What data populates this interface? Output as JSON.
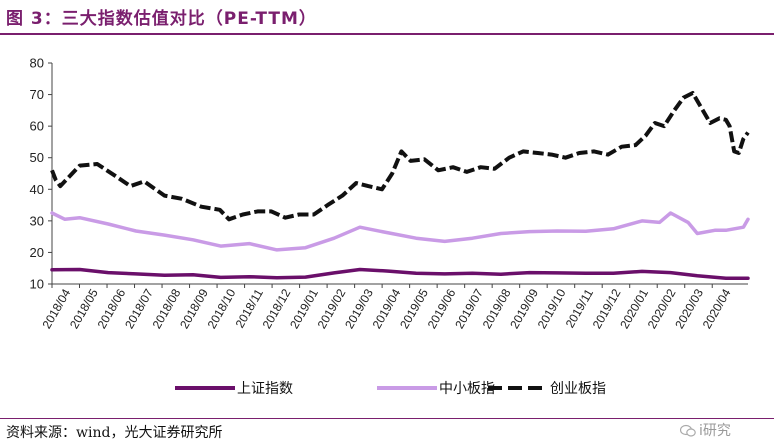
{
  "title": "图 3：三大指数估值对比（PE-TTM）",
  "source": "资料来源：wind，光大证券研究所",
  "watermark": "i研究",
  "colors": {
    "title": "#7a1f6e",
    "上证指数": "#6a0f6a",
    "中小板指": "#c99be6",
    "创业板指": "#111111"
  },
  "chart_data": {
    "type": "line",
    "x_tick_labels": [
      "2018/04",
      "2018/05",
      "2018/06",
      "2018/07",
      "2018/08",
      "2018/09",
      "2018/10",
      "2018/11",
      "2018/12",
      "2019/01",
      "2019/02",
      "2019/03",
      "2019/04",
      "2019/05",
      "2019/06",
      "2019/07",
      "2019/08",
      "2019/09",
      "2019/10",
      "2019/11",
      "2019/12",
      "2020/01",
      "2020/02",
      "2020/03",
      "2020/04"
    ],
    "ylim": [
      10,
      80
    ],
    "y_ticks": [
      10,
      20,
      30,
      40,
      50,
      60,
      70,
      80
    ],
    "legend_position": "bottom",
    "series": [
      {
        "name": "上证指数",
        "style": "solid",
        "x": [
          "2018/04/01",
          "2018/05/01",
          "2018/06/01",
          "2018/07/01",
          "2018/08/01",
          "2018/09/01",
          "2018/10/01",
          "2018/11/01",
          "2018/12/01",
          "2019/01/01",
          "2019/02/01",
          "2019/03/01",
          "2019/04/01",
          "2019/05/01",
          "2019/06/01",
          "2019/07/01",
          "2019/08/01",
          "2019/09/01",
          "2019/10/01",
          "2019/11/01",
          "2019/12/01",
          "2020/01/01",
          "2020/02/01",
          "2020/03/01",
          "2020/04/01",
          "2020/04/25"
        ],
        "values": [
          14.5,
          14.6,
          13.6,
          13.2,
          12.8,
          12.9,
          12.1,
          12.3,
          12.0,
          12.2,
          13.5,
          14.6,
          14.1,
          13.4,
          13.2,
          13.4,
          13.1,
          13.6,
          13.5,
          13.4,
          13.4,
          14.0,
          13.6,
          12.6,
          11.8,
          11.8
        ]
      },
      {
        "name": "中小板指",
        "style": "solid",
        "x": [
          "2018/04/01",
          "2018/04/15",
          "2018/05/01",
          "2018/06/01",
          "2018/07/01",
          "2018/08/01",
          "2018/09/01",
          "2018/10/01",
          "2018/11/01",
          "2018/12/01",
          "2019/01/01",
          "2019/02/01",
          "2019/03/01",
          "2019/04/01",
          "2019/05/01",
          "2019/06/01",
          "2019/07/01",
          "2019/08/01",
          "2019/09/01",
          "2019/10/01",
          "2019/11/01",
          "2019/12/01",
          "2020/01/01",
          "2020/01/20",
          "2020/02/01",
          "2020/02/20",
          "2020/03/01",
          "2020/03/20",
          "2020/04/01",
          "2020/04/20",
          "2020/04/25"
        ],
        "values": [
          32.5,
          30.5,
          31.0,
          29.0,
          26.8,
          25.5,
          24.0,
          22.0,
          22.8,
          20.8,
          21.5,
          24.5,
          28.0,
          26.2,
          24.5,
          23.5,
          24.5,
          26.0,
          26.6,
          26.8,
          26.7,
          27.5,
          30.0,
          29.5,
          32.5,
          29.5,
          26.0,
          27.0,
          27.0,
          28.0,
          30.5
        ]
      },
      {
        "name": "创业板指",
        "style": "dashed",
        "x": [
          "2018/04/01",
          "2018/04/05",
          "2018/04/10",
          "2018/05/01",
          "2018/05/20",
          "2018/06/10",
          "2018/06/25",
          "2018/07/10",
          "2018/08/01",
          "2018/08/20",
          "2018/09/10",
          "2018/09/30",
          "2018/10/10",
          "2018/10/25",
          "2018/11/10",
          "2018/11/25",
          "2018/12/10",
          "2018/12/25",
          "2019/01/10",
          "2019/01/25",
          "2019/02/10",
          "2019/02/25",
          "2019/03/10",
          "2019/03/25",
          "2019/04/05",
          "2019/04/15",
          "2019/04/25",
          "2019/05/10",
          "2019/05/25",
          "2019/06/10",
          "2019/06/25",
          "2019/07/10",
          "2019/07/25",
          "2019/08/10",
          "2019/08/25",
          "2019/09/10",
          "2019/09/25",
          "2019/10/10",
          "2019/10/25",
          "2019/11/10",
          "2019/11/25",
          "2019/12/10",
          "2019/12/25",
          "2020/01/05",
          "2020/01/15",
          "2020/01/25",
          "2020/02/05",
          "2020/02/15",
          "2020/02/25",
          "2020/03/05",
          "2020/03/15",
          "2020/03/25",
          "2020/04/01",
          "2020/04/05",
          "2020/04/10",
          "2020/04/15",
          "2020/04/20",
          "2020/04/25"
        ],
        "values": [
          46.0,
          43.0,
          41.0,
          47.5,
          48.0,
          44.0,
          41.0,
          42.5,
          38.0,
          37.0,
          34.5,
          33.5,
          30.5,
          32.0,
          33.0,
          33.0,
          31.0,
          32.0,
          32.0,
          35.0,
          38.0,
          42.0,
          41.0,
          40.0,
          45.0,
          52.0,
          49.0,
          49.5,
          46.0,
          47.0,
          45.5,
          47.0,
          46.5,
          50.0,
          52.0,
          51.5,
          51.0,
          50.0,
          51.5,
          52.0,
          51.0,
          53.5,
          54.0,
          57.0,
          61.0,
          60.0,
          65.0,
          69.0,
          70.5,
          66.0,
          61.0,
          62.5,
          62.0,
          60.0,
          52.0,
          51.5,
          56.0,
          58.0
        ]
      }
    ]
  }
}
